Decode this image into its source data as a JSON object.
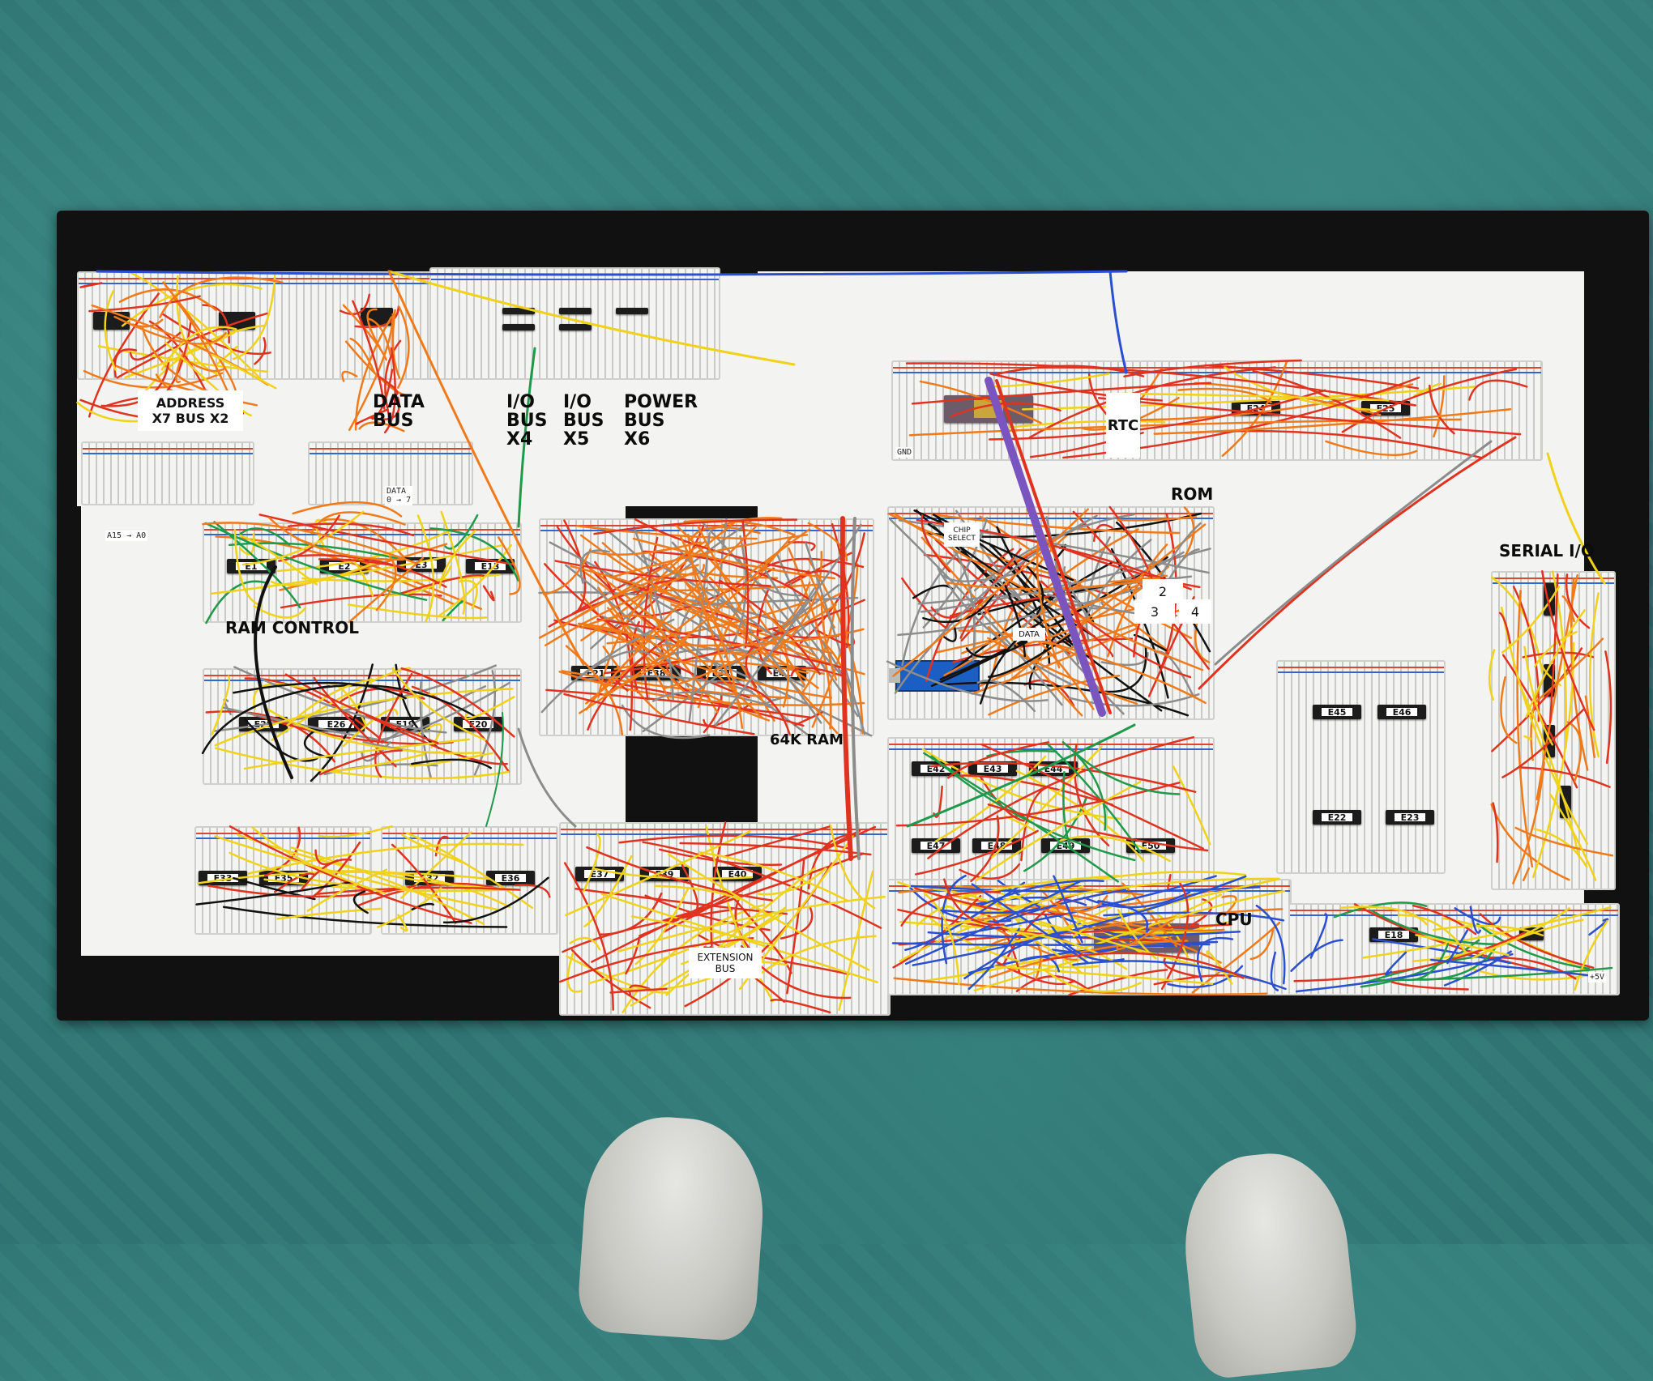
{
  "photo": {
    "board_labels": {
      "address_bus": "ADDRESS\nX7 BUS X2",
      "data_bus": "DATA\nBUS",
      "io_bus_4": "I/O\nBUS\nX4",
      "io_bus_5": "I/O\nBUS\nX5",
      "power_bus": "POWER\nBUS\nX6",
      "ram_control": "RAM CONTROL",
      "rtc": "RTC",
      "rom": "ROM",
      "serial_io": "SERIAL I/O",
      "ram_64k": "64K RAM",
      "cpu": "CPU",
      "extension_bus": "EXTENSION\nBUS",
      "data_small": "DATA",
      "chip_select": "CHIP\nSELECT",
      "rom_slot_2": "2",
      "rom_slot_3": "3",
      "rom_slot_4": "4"
    },
    "small_tags": {
      "a15_a0": "A15 → A0",
      "data_arrow": "DATA\n0 → 7",
      "gnd": "GND",
      "plus5v": "+5V"
    },
    "chip_tags": [
      "E1",
      "E2",
      "E3",
      "E13",
      "E29",
      "E26",
      "E19",
      "E20",
      "E21",
      "E38",
      "E34",
      "E41",
      "E42",
      "E43",
      "E44",
      "E47",
      "E48",
      "E49",
      "E50",
      "E33",
      "E35",
      "E32",
      "E36",
      "E37",
      "E39",
      "E40",
      "E45",
      "E46",
      "E22",
      "E23",
      "E24",
      "E25",
      "E18"
    ],
    "colors": {
      "carpet": "#2f7472",
      "backboard": "#111111",
      "paper": "#f3f3f1",
      "wire_red": "#e0331f",
      "wire_orange": "#f07a1a",
      "wire_yellow": "#f0d21a",
      "wire_blue": "#2a4fd0",
      "wire_green": "#1f9a4a",
      "wire_gray": "#8c8c8c",
      "wire_black": "#111111",
      "nano_blue": "#1b5fc4"
    }
  }
}
